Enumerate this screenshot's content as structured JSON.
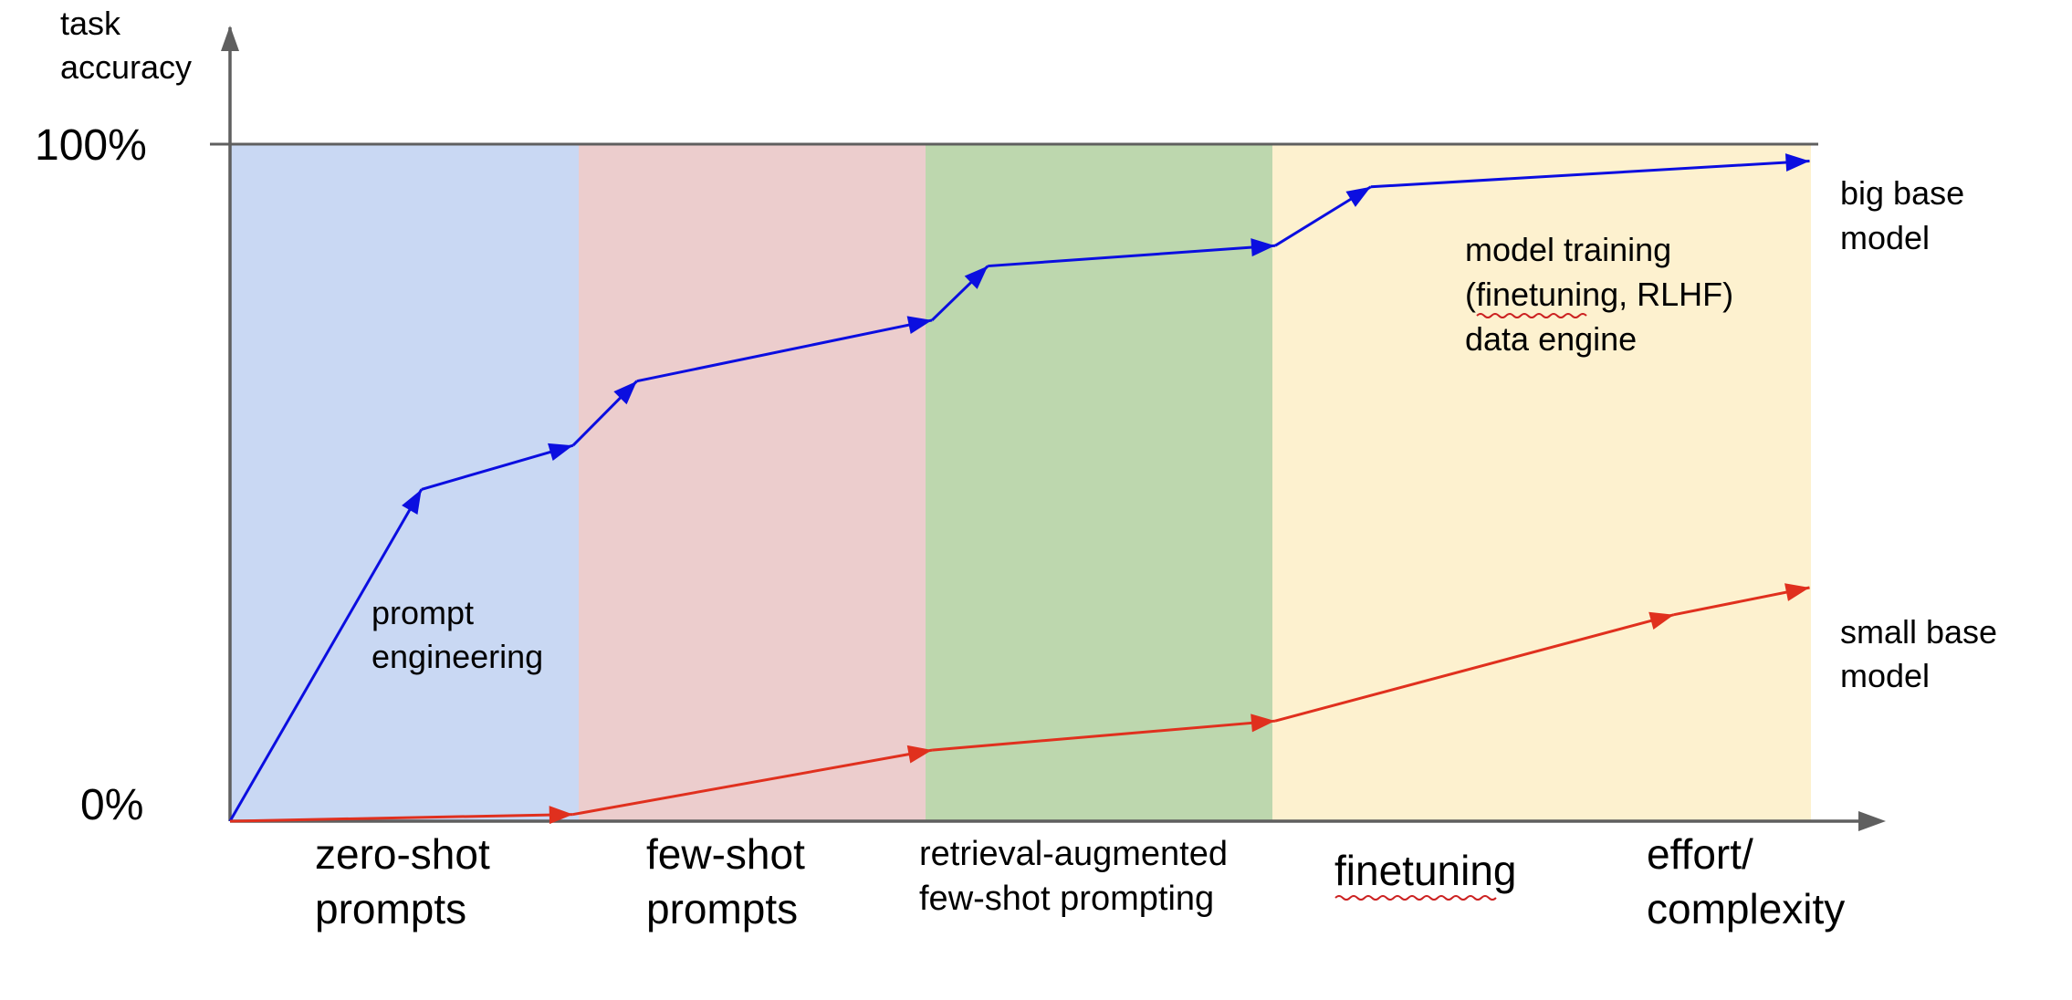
{
  "axis": {
    "y_title_lines": [
      "task",
      "accuracy"
    ],
    "y_top_label": "100%",
    "y_bottom_label": "0%",
    "x_title_lines": [
      "effort/",
      "complexity"
    ]
  },
  "regions": [
    {
      "label_lines": [
        "zero-shot",
        "prompts"
      ],
      "color": "#c9d8f3"
    },
    {
      "label_lines": [
        "few-shot",
        "prompts"
      ],
      "color": "#eccdcd"
    },
    {
      "label_lines": [
        "retrieval-augmented",
        "few-shot prompting"
      ],
      "color": "#bdd7ae"
    },
    {
      "label_lines": [
        "finetuning"
      ],
      "color": "#fdf1cf"
    }
  ],
  "annotations": {
    "prompt_engineering_lines": [
      "prompt",
      "engineering"
    ],
    "model_training_lines": [
      "model training",
      "(finetuning, RLHF)",
      "data engine"
    ]
  },
  "series": [
    {
      "name_lines": [
        "big base",
        "model"
      ],
      "color": "#0b0ee0",
      "points": [
        [
          0,
          0
        ],
        [
          0.12,
          0.49
        ],
        [
          0.215,
          0.555
        ],
        [
          0.255,
          0.65
        ],
        [
          0.44,
          0.74
        ],
        [
          0.475,
          0.82
        ],
        [
          0.655,
          0.85
        ],
        [
          0.715,
          0.937
        ],
        [
          0.99,
          0.975
        ]
      ]
    },
    {
      "name_lines": [
        "small base",
        "model"
      ],
      "color": "#e0301e",
      "points": [
        [
          0,
          0
        ],
        [
          0.215,
          0.01
        ],
        [
          0.44,
          0.105
        ],
        [
          0.655,
          0.148
        ],
        [
          0.905,
          0.305
        ],
        [
          0.99,
          0.345
        ]
      ]
    }
  ]
}
